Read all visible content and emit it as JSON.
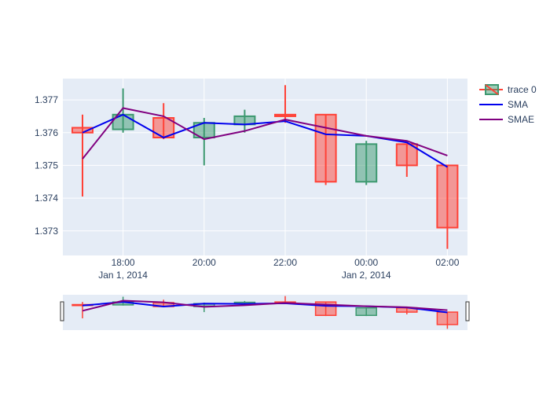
{
  "chart_data": {
    "type": "candlestick",
    "x": [
      "2014-01-01 17:00",
      "2014-01-01 18:00",
      "2014-01-01 19:00",
      "2014-01-01 20:00",
      "2014-01-01 21:00",
      "2014-01-01 22:00",
      "2014-01-01 23:00",
      "2014-01-02 00:00",
      "2014-01-02 01:00",
      "2014-01-02 02:00"
    ],
    "candles": [
      {
        "open": 1.37615,
        "high": 1.37655,
        "low": 1.37405,
        "close": 1.376
      },
      {
        "open": 1.3761,
        "high": 1.37735,
        "low": 1.376,
        "close": 1.37655
      },
      {
        "open": 1.37645,
        "high": 1.3769,
        "low": 1.3758,
        "close": 1.37585
      },
      {
        "open": 1.37585,
        "high": 1.37645,
        "low": 1.375,
        "close": 1.3763
      },
      {
        "open": 1.37625,
        "high": 1.3767,
        "low": 1.376,
        "close": 1.3765
      },
      {
        "open": 1.37655,
        "high": 1.37745,
        "low": 1.3763,
        "close": 1.3765
      },
      {
        "open": 1.37655,
        "high": 1.37655,
        "low": 1.3744,
        "close": 1.3745
      },
      {
        "open": 1.3745,
        "high": 1.37575,
        "low": 1.3744,
        "close": 1.37565
      },
      {
        "open": 1.37565,
        "high": 1.37565,
        "low": 1.37465,
        "close": 1.375
      },
      {
        "open": 1.375,
        "high": 1.375,
        "low": 1.37245,
        "close": 1.3731
      }
    ],
    "series": [
      {
        "name": "SMA",
        "values": [
          1.376,
          1.37655,
          1.37585,
          1.3763,
          1.37625,
          1.37635,
          1.37595,
          1.3759,
          1.3757,
          1.37495
        ]
      },
      {
        "name": "SMAE",
        "values": [
          1.3752,
          1.37675,
          1.3765,
          1.3758,
          1.37605,
          1.3764,
          1.37615,
          1.3759,
          1.37575,
          1.3753
        ]
      }
    ],
    "legend": [
      "trace 0",
      "SMA",
      "SMAE"
    ],
    "legend_position": "top-right",
    "ylim": [
      1.37225,
      1.37765
    ],
    "y_ticks": [
      "1.373",
      "1.374",
      "1.375",
      "1.376",
      "1.377"
    ],
    "x_ticks": [
      {
        "label": "18:00",
        "sub": "Jan 1, 2014"
      },
      {
        "label": "20:00",
        "sub": ""
      },
      {
        "label": "22:00",
        "sub": ""
      },
      {
        "label": "00:00",
        "sub": "Jan 2, 2014"
      },
      {
        "label": "02:00",
        "sub": ""
      }
    ],
    "grid": true,
    "rangeslider": true,
    "colors": {
      "increasing": "#3d9970",
      "increasing_fill": "rgba(61,153,112,0.5)",
      "decreasing": "#ff4136",
      "decreasing_fill": "rgba(255,65,54,0.5)",
      "sma": "#0000ee",
      "smae": "#800080",
      "plot_bg": "#e5ecf6",
      "tick_text": "#2a3f5f"
    }
  }
}
